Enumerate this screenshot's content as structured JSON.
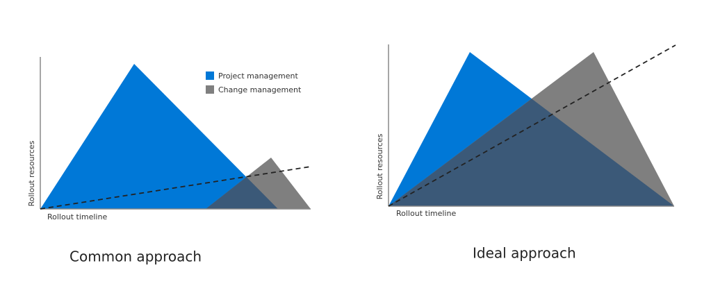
{
  "panels": [
    {
      "caption": "Common approach",
      "y_label": "Rollout resources",
      "x_label": "Rollout timeline",
      "legend": [
        "Project management",
        "Change management"
      ]
    },
    {
      "caption": "Ideal approach",
      "y_label": "Rollout resources",
      "x_label": "Rollout timeline"
    }
  ]
}
